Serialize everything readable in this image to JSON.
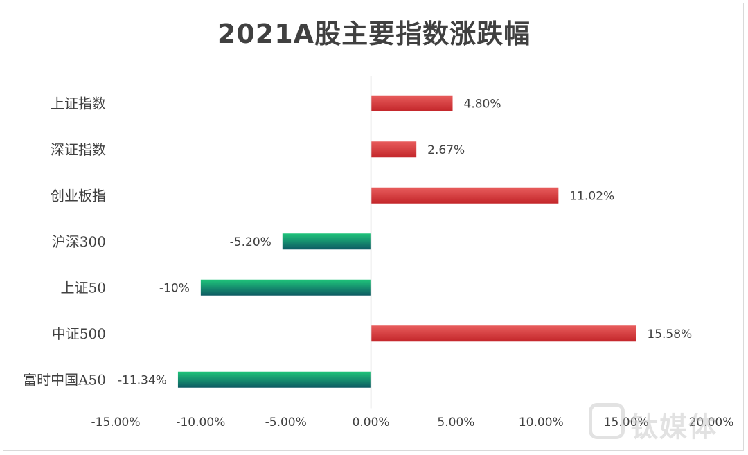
{
  "chart_data": {
    "type": "bar",
    "orientation": "horizontal",
    "title": "2021A股主要指数涨跌幅",
    "categories": [
      "上证指数",
      "深证指数",
      "创业板指",
      "沪深300",
      "上证50",
      "中证500",
      "富时中国A50"
    ],
    "values": [
      4.8,
      2.67,
      11.02,
      -5.2,
      -10.0,
      15.58,
      -11.34
    ],
    "value_labels": [
      "4.80%",
      "2.67%",
      "11.02%",
      "-5.20%",
      "-10%",
      "15.58%",
      "-11.34%"
    ],
    "xlim": [
      -15,
      20
    ],
    "x_ticks": [
      -15,
      -10,
      -5,
      0,
      5,
      10,
      15,
      20
    ],
    "x_tick_labels": [
      "-15.00%",
      "-10.00%",
      "-5.00%",
      "0.00%",
      "5.00%",
      "10.00%",
      "15.00%",
      "20.00%"
    ],
    "xlabel": "",
    "ylabel": "",
    "grid": false,
    "colors": {
      "positive_top": "#e85c5c",
      "positive_bottom": "#c3262a",
      "negative_top": "#1fc47a",
      "negative_bottom": "#0d5a63",
      "axis": "#d9d9d9",
      "text": "#404040"
    }
  },
  "watermark": "钛媒体"
}
